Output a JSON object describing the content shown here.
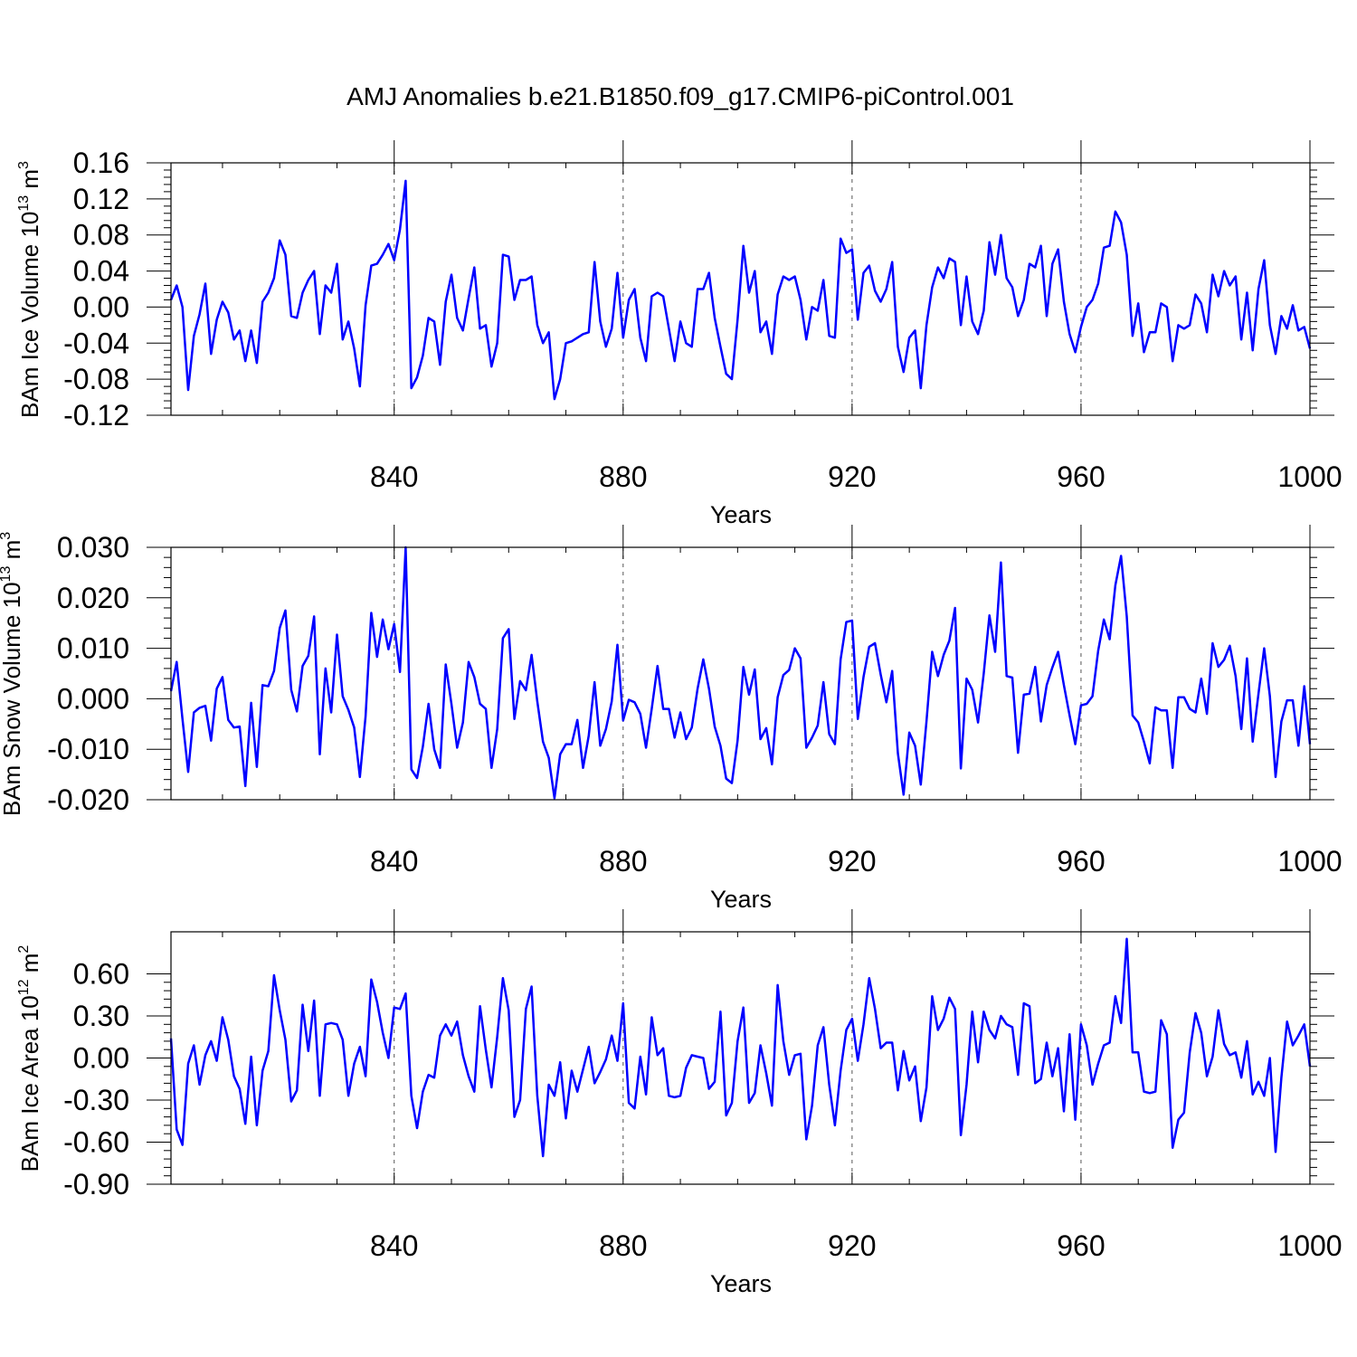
{
  "chart_data": [
    {
      "type": "line",
      "title": "AMJ Anomalies b.e21.B1850.f09_g17.CMIP6-piControl.001",
      "ylabel": "BAm Ice Volume 10",
      "ylabel_exp": "13",
      "ylabel_unit": " m",
      "ylabel_unit_exp": "3",
      "xlabel": "Years",
      "xlim": [
        801,
        1000
      ],
      "ylim": [
        -0.12,
        0.16
      ],
      "xticks": [
        840,
        880,
        920,
        960,
        1000
      ],
      "xtick_labels": [
        "840",
        "880",
        "920",
        "960",
        "1000"
      ],
      "yticks": [
        0.16,
        0.12,
        0.08,
        0.04,
        0.0,
        -0.04,
        -0.08,
        -0.12
      ],
      "ytick_labels": [
        "0.16",
        "0.12",
        "0.08",
        "0.04",
        "0.00",
        "-0.04",
        "-0.08",
        "-0.12"
      ],
      "grid_x": [
        840,
        880,
        920,
        960
      ],
      "series": [
        {
          "name": "BAm Ice Volume",
          "color": "#0000ff",
          "start_year": 801,
          "values": [
            0.008,
            0.024,
            0.0,
            -0.092,
            -0.032,
            -0.008,
            0.026,
            -0.052,
            -0.014,
            0.006,
            -0.006,
            -0.036,
            -0.026,
            -0.06,
            -0.026,
            -0.062,
            0.006,
            0.016,
            0.032,
            0.074,
            0.058,
            -0.01,
            -0.012,
            0.016,
            0.03,
            0.04,
            -0.03,
            0.024,
            0.016,
            0.048,
            -0.036,
            -0.016,
            -0.046,
            -0.088,
            0.002,
            0.046,
            0.048,
            0.058,
            0.07,
            0.052,
            0.086,
            0.14,
            -0.09,
            -0.078,
            -0.054,
            -0.012,
            -0.016,
            -0.064,
            0.006,
            0.036,
            -0.012,
            -0.026,
            0.01,
            0.044,
            -0.024,
            -0.02,
            -0.066,
            -0.04,
            0.058,
            0.056,
            0.008,
            0.03,
            0.03,
            0.034,
            -0.02,
            -0.04,
            -0.028,
            -0.102,
            -0.08,
            -0.04,
            -0.038,
            -0.034,
            -0.03,
            -0.028,
            0.05,
            -0.016,
            -0.044,
            -0.024,
            0.038,
            -0.034,
            0.008,
            0.02,
            -0.034,
            -0.06,
            0.012,
            0.016,
            0.012,
            -0.024,
            -0.06,
            -0.016,
            -0.04,
            -0.044,
            0.02,
            0.02,
            0.038,
            -0.012,
            -0.044,
            -0.074,
            -0.08,
            -0.014,
            0.068,
            0.016,
            0.04,
            -0.028,
            -0.016,
            -0.052,
            0.014,
            0.034,
            0.03,
            0.034,
            0.008,
            -0.036,
            0.0,
            -0.004,
            0.03,
            -0.032,
            -0.034,
            0.076,
            0.06,
            0.064,
            -0.014,
            0.038,
            0.046,
            0.018,
            0.006,
            0.02,
            0.05,
            -0.044,
            -0.072,
            -0.034,
            -0.026,
            -0.09,
            -0.02,
            0.022,
            0.044,
            0.032,
            0.054,
            0.05,
            -0.02,
            0.034,
            -0.016,
            -0.03,
            -0.004,
            0.072,
            0.036,
            0.08,
            0.032,
            0.022,
            -0.01,
            0.008,
            0.048,
            0.044,
            0.068,
            -0.01,
            0.048,
            0.064,
            0.006,
            -0.03,
            -0.05,
            -0.022,
            0.0,
            0.008,
            0.026,
            0.066,
            0.068,
            0.106,
            0.094,
            0.058,
            -0.032,
            0.004,
            -0.05,
            -0.028,
            -0.028,
            0.004,
            0.0,
            -0.06,
            -0.02,
            -0.024,
            -0.02,
            0.014,
            0.004,
            -0.028,
            0.036,
            0.012,
            0.04,
            0.024,
            0.034,
            -0.036,
            0.016,
            -0.048,
            0.02,
            0.052,
            -0.02,
            -0.052,
            -0.01,
            -0.024,
            0.002,
            -0.026,
            -0.022,
            -0.046
          ]
        }
      ]
    },
    {
      "type": "line",
      "ylabel": "BAm Snow Volume 10",
      "ylabel_exp": "13",
      "ylabel_unit": " m",
      "ylabel_unit_exp": "3",
      "xlabel": "Years",
      "xlim": [
        801,
        1000
      ],
      "ylim": [
        -0.02,
        0.03
      ],
      "xticks": [
        840,
        880,
        920,
        960,
        1000
      ],
      "xtick_labels": [
        "840",
        "880",
        "920",
        "960",
        "1000"
      ],
      "yticks": [
        0.03,
        0.02,
        0.01,
        0.0,
        -0.01,
        -0.02
      ],
      "ytick_labels": [
        "0.030",
        "0.020",
        "0.010",
        "0.000",
        "-0.010",
        "-0.020"
      ],
      "grid_x": [
        840,
        880,
        920,
        960
      ],
      "series": [
        {
          "name": "BAm Snow Volume",
          "color": "#0000ff",
          "start_year": 801,
          "values": [
            0.0015,
            0.0073,
            -0.004,
            -0.0145,
            -0.0027,
            -0.0018,
            -0.0014,
            -0.0083,
            0.002,
            0.0043,
            -0.0042,
            -0.0057,
            -0.0055,
            -0.0173,
            -0.0008,
            -0.0135,
            0.0027,
            0.0025,
            0.0055,
            0.014,
            0.0175,
            0.0018,
            -0.0025,
            0.0065,
            0.0085,
            0.0163,
            -0.011,
            0.006,
            -0.0027,
            0.0127,
            0.0005,
            -0.0022,
            -0.0057,
            -0.0155,
            -0.0035,
            0.017,
            0.0083,
            0.0157,
            0.0098,
            0.0148,
            0.0053,
            0.03,
            -0.014,
            -0.0157,
            -0.0095,
            -0.001,
            -0.01,
            -0.0137,
            0.0068,
            -0.001,
            -0.0097,
            -0.0047,
            0.0073,
            0.0043,
            -0.001,
            -0.002,
            -0.0137,
            -0.006,
            0.012,
            0.0138,
            -0.004,
            0.0035,
            0.0017,
            0.0087,
            -0.0005,
            -0.0085,
            -0.0117,
            -0.0197,
            -0.011,
            -0.009,
            -0.009,
            -0.0042,
            -0.0137,
            -0.0073,
            0.0033,
            -0.0093,
            -0.006,
            -0.0005,
            0.0107,
            -0.0043,
            -0.0002,
            -0.0007,
            -0.003,
            -0.0097,
            -0.002,
            0.0065,
            -0.002,
            -0.002,
            -0.0077,
            -0.0027,
            -0.008,
            -0.0057,
            0.002,
            0.0078,
            0.002,
            -0.0055,
            -0.0093,
            -0.0158,
            -0.0167,
            -0.0083,
            0.0063,
            0.0008,
            0.0058,
            -0.008,
            -0.0058,
            -0.013,
            0.0003,
            0.0047,
            0.0057,
            0.01,
            0.008,
            -0.0097,
            -0.0077,
            -0.0053,
            0.0033,
            -0.007,
            -0.009,
            0.0078,
            0.0152,
            0.0155,
            -0.004,
            0.0043,
            0.0103,
            0.011,
            0.0048,
            -0.0007,
            0.0055,
            -0.0108,
            -0.019,
            -0.0067,
            -0.0093,
            -0.017,
            -0.0045,
            0.0093,
            0.0045,
            0.0087,
            0.0115,
            0.018,
            -0.0138,
            0.004,
            0.0018,
            -0.0047,
            0.005,
            0.0165,
            0.0093,
            0.027,
            0.0045,
            0.0042,
            -0.0107,
            0.0008,
            0.001,
            0.0063,
            -0.0045,
            0.0027,
            0.0062,
            0.0093,
            0.0027,
            -0.0033,
            -0.009,
            -0.0013,
            -0.001,
            0.0005,
            0.0095,
            0.0157,
            0.0118,
            0.0225,
            0.0283,
            0.0163,
            -0.0033,
            -0.0047,
            -0.0085,
            -0.0128,
            -0.0017,
            -0.0023,
            -0.0023,
            -0.0137,
            0.0003,
            0.0003,
            -0.002,
            -0.0027,
            0.004,
            -0.003,
            0.011,
            0.0063,
            0.0077,
            0.0105,
            0.0045,
            -0.006,
            0.008,
            -0.0085,
            0.001,
            0.01,
            0.0005,
            -0.0155,
            -0.0045,
            -0.0003,
            -0.0003,
            -0.0093,
            0.0025,
            -0.009
          ]
        }
      ]
    },
    {
      "type": "line",
      "ylabel": "BAm Ice Area 10",
      "ylabel_exp": "12",
      "ylabel_unit": " m",
      "ylabel_unit_exp": "2",
      "xlabel": "Years",
      "xlim": [
        801,
        1000
      ],
      "ylim": [
        -0.9,
        0.9
      ],
      "xticks": [
        840,
        880,
        920,
        960,
        1000
      ],
      "xtick_labels": [
        "840",
        "880",
        "920",
        "960",
        "1000"
      ],
      "yticks": [
        0.6,
        0.3,
        0.0,
        -0.3,
        -0.6,
        -0.9
      ],
      "ytick_labels": [
        "0.60",
        "0.30",
        "0.00",
        "-0.30",
        "-0.60",
        "-0.90"
      ],
      "grid_x": [
        840,
        880,
        920,
        960
      ],
      "series": [
        {
          "name": "BAm Ice Area",
          "color": "#0000ff",
          "start_year": 801,
          "values": [
            0.14,
            -0.51,
            -0.62,
            -0.04,
            0.09,
            -0.19,
            0.02,
            0.12,
            -0.02,
            0.29,
            0.13,
            -0.13,
            -0.22,
            -0.47,
            0.01,
            -0.48,
            -0.09,
            0.05,
            0.59,
            0.34,
            0.13,
            -0.31,
            -0.23,
            0.38,
            0.05,
            0.41,
            -0.27,
            0.24,
            0.25,
            0.24,
            0.13,
            -0.27,
            -0.04,
            0.08,
            -0.13,
            0.56,
            0.4,
            0.18,
            0.0,
            0.36,
            0.35,
            0.46,
            -0.27,
            -0.5,
            -0.24,
            -0.12,
            -0.14,
            0.16,
            0.24,
            0.16,
            0.26,
            0.02,
            -0.13,
            -0.24,
            0.37,
            0.06,
            -0.21,
            0.15,
            0.57,
            0.34,
            -0.42,
            -0.3,
            0.35,
            0.51,
            -0.27,
            -0.7,
            -0.19,
            -0.27,
            -0.03,
            -0.43,
            -0.09,
            -0.24,
            -0.08,
            0.08,
            -0.18,
            -0.1,
            -0.01,
            0.16,
            -0.02,
            0.39,
            -0.32,
            -0.36,
            0.01,
            -0.26,
            0.29,
            0.02,
            0.07,
            -0.27,
            -0.28,
            -0.27,
            -0.07,
            0.02,
            0.01,
            0.0,
            -0.22,
            -0.17,
            0.33,
            -0.41,
            -0.32,
            0.12,
            0.36,
            -0.32,
            -0.25,
            0.09,
            -0.11,
            -0.34,
            0.52,
            0.12,
            -0.12,
            0.02,
            0.03,
            -0.58,
            -0.34,
            0.09,
            0.22,
            -0.19,
            -0.48,
            -0.09,
            0.2,
            0.28,
            -0.02,
            0.24,
            0.57,
            0.35,
            0.07,
            0.11,
            0.11,
            -0.23,
            0.05,
            -0.16,
            -0.06,
            -0.45,
            -0.21,
            0.44,
            0.2,
            0.28,
            0.43,
            0.35,
            -0.55,
            -0.19,
            0.33,
            -0.03,
            0.33,
            0.2,
            0.14,
            0.3,
            0.24,
            0.22,
            -0.12,
            0.39,
            0.37,
            -0.18,
            -0.15,
            0.11,
            -0.13,
            0.07,
            -0.38,
            0.17,
            -0.44,
            0.24,
            0.09,
            -0.19,
            -0.04,
            0.09,
            0.11,
            0.44,
            0.25,
            0.85,
            0.04,
            0.04,
            -0.24,
            -0.25,
            -0.24,
            0.27,
            0.17,
            -0.64,
            -0.44,
            -0.39,
            0.04,
            0.32,
            0.18,
            -0.13,
            0.01,
            0.34,
            0.1,
            0.02,
            0.04,
            -0.14,
            0.12,
            -0.26,
            -0.17,
            -0.27,
            0.0,
            -0.67,
            -0.14,
            0.26,
            0.09,
            0.16,
            0.24,
            -0.06
          ]
        }
      ]
    }
  ]
}
